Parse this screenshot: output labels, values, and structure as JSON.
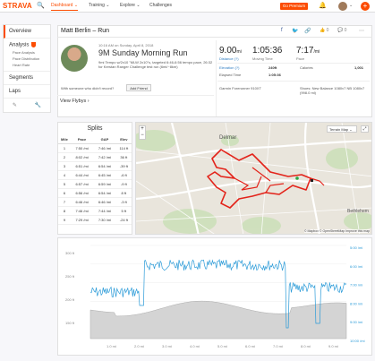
{
  "nav": {
    "logo": "STRAVA",
    "items": [
      "Dashboard ⌄",
      "Training ⌄",
      "Explore ⌄",
      "Challenges"
    ],
    "premium": "Go Premium"
  },
  "sidebar": {
    "overview": "Overview",
    "analysis": "Analysis",
    "sub": [
      "Pace Analysis",
      "Pace Distribution",
      "Heart Rate"
    ],
    "segments": "Segments",
    "laps": "Laps"
  },
  "header": {
    "title": "Matt Berlin – Run",
    "kudos": "0",
    "comments": "0"
  },
  "activity": {
    "date": "10:16 AM on Sunday, April 8, 2018",
    "title": "9M Sunday Morning Run",
    "description": "9mi Tempo w/2x10 \"MLW 2x10\"s, targeted 6:46-6:56 tempo pace, 26:32 for Kerstan Ranger Challenge test run (6mi/~8km)",
    "question": "With someone who didn't record?",
    "add_friend": "Add Friend",
    "flyby": "View Flybys ›"
  },
  "stats": {
    "distance": "9.00",
    "distance_unit": "mi",
    "distance_label": "Distance (?)",
    "moving_time": "1:05:36",
    "moving_label": "Moving Time",
    "pace": "7:17",
    "pace_unit": "/mi",
    "pace_label": "Pace",
    "elev_label": "Elevation (?)",
    "elev_value": "240ft",
    "cal_label": "Calories",
    "cal_value": "1,001",
    "elapsed_label": "Elapsed Time",
    "elapsed_value": "1:05:36",
    "device": "Garmin Forerunner 910XT",
    "shoes": "Shoes: New Balance 1080v7 NB 1080v7 (998.0 mi)"
  },
  "splits": {
    "title": "Splits",
    "headers": [
      "Mile",
      "Pace",
      "GAP",
      "Elev"
    ],
    "rows": [
      [
        "1",
        "7:50 /mi",
        "7:46 /mi",
        "114 ft"
      ],
      [
        "2",
        "8:02 /mi",
        "7:42 /mi",
        "36 ft"
      ],
      [
        "3",
        "6:51 /mi",
        "6:54 /mi",
        "-39 ft"
      ],
      [
        "4",
        "6:44 /mi",
        "6:45 /mi",
        "-6 ft"
      ],
      [
        "5",
        "6:57 /mi",
        "6:59 /mi",
        "-9 ft"
      ],
      [
        "6",
        "6:56 /mi",
        "6:54 /mi",
        "8 ft"
      ],
      [
        "7",
        "6:46 /mi",
        "6:46 /mi",
        "-3 ft"
      ],
      [
        "8",
        "7:46 /mi",
        "7:44 /mi",
        "5 ft"
      ],
      [
        "9",
        "7:29 /mi",
        "7:30 /mi",
        "-24 ft"
      ]
    ]
  },
  "map": {
    "labels": [
      "Delmar",
      "Bethlehem"
    ],
    "attribution": "© Mapbox © OpenStreetMap  Improve this map",
    "terrain_btn": "Terrain Map"
  },
  "elevation": {
    "y_left": [
      "300 ft",
      "250 ft",
      "200 ft",
      "150 ft"
    ],
    "y_right": [
      "5:00 /mi",
      "6:00 /mi",
      "7:00 /mi",
      "8:00 /mi",
      "9:00 /mi",
      "10:00 /mi"
    ],
    "x": [
      "1.0 mi",
      "2.0 mi",
      "3.0 mi",
      "4.0 mi",
      "5.0 mi",
      "6.0 mi",
      "7.0 mi",
      "8.0 mi",
      "9.0 mi"
    ]
  },
  "colors": {
    "accent": "#fc4c02",
    "pace_line": "#2b9bd8",
    "route": "#e3231a"
  }
}
